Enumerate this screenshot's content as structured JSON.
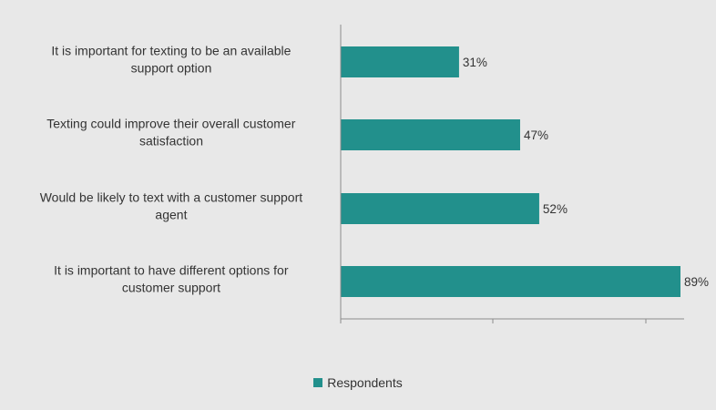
{
  "chart_data": {
    "type": "bar",
    "orientation": "horizontal",
    "categories": [
      [
        "It is important for texting to be an available",
        "support option"
      ],
      [
        "Texting could improve their overall customer",
        "satisfaction"
      ],
      [
        "Would be likely to text with a customer support",
        "agent"
      ],
      [
        "It is important to have different options for",
        "customer support"
      ]
    ],
    "series": [
      {
        "name": "Respondents",
        "values": [
          31,
          47,
          52,
          89
        ],
        "color": "#22908c"
      }
    ],
    "value_labels": [
      "31%",
      "47%",
      "52%",
      "89%"
    ],
    "xlim": [
      0,
      90
    ],
    "grid": false,
    "legend_position": "bottom"
  },
  "legend": {
    "label": "Respondents",
    "color": "#22908c"
  },
  "colors": {
    "background": "#e8e8e8",
    "axis": "#8c8c8c",
    "text": "#333333"
  }
}
